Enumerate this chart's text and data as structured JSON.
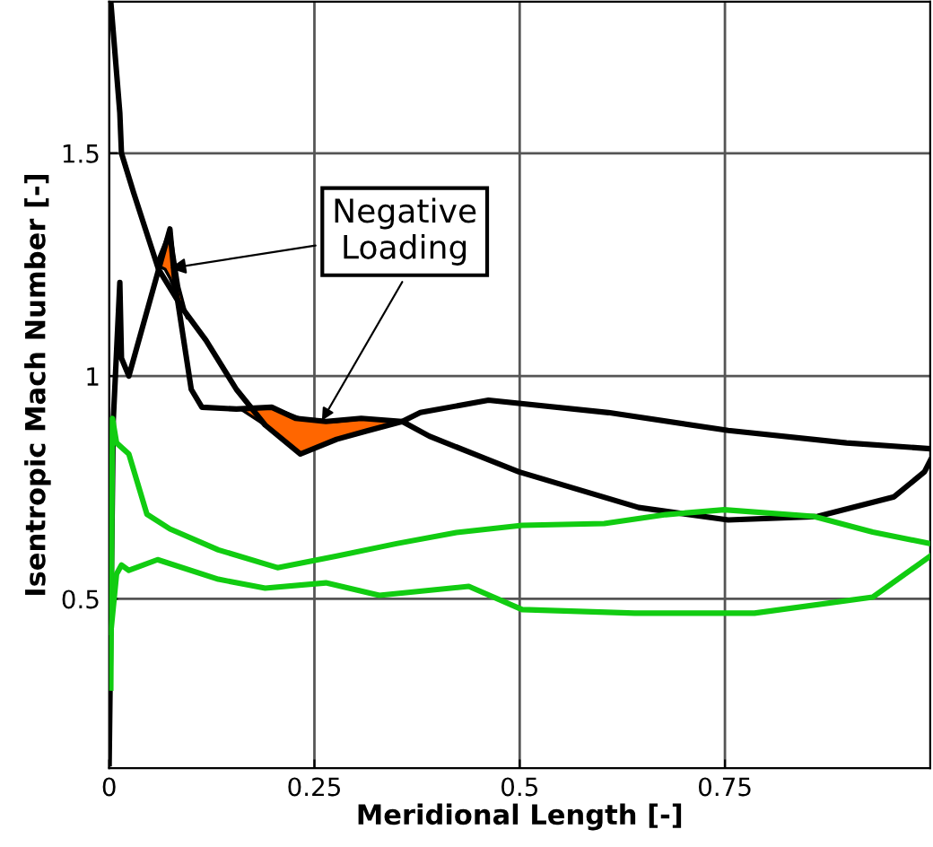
{
  "chart_data": {
    "type": "line",
    "xlabel": "Meridional Length [-]",
    "ylabel": "Isentropic Mach Number [-]",
    "xlim": [
      0,
      1
    ],
    "ylim": [
      0.12,
      1.84
    ],
    "xticks": [
      0,
      0.25,
      0.5,
      0.75
    ],
    "yticks": [
      0.5,
      1,
      1.5
    ],
    "grid": true,
    "legend": false,
    "marker": "none",
    "line_style": "solid",
    "series": [
      {
        "color": "#000000",
        "x": [
          0.002,
          0.013,
          0.015,
          0.03,
          0.06,
          0.09,
          0.118,
          0.155,
          0.19,
          0.233,
          0.277,
          0.314,
          0.357,
          0.39,
          0.499,
          0.645,
          0.754,
          0.863,
          0.956,
          0.993,
          1.0
        ],
        "values": [
          1.84,
          1.59,
          1.5,
          1.41,
          1.24,
          1.15,
          1.08,
          0.97,
          0.89,
          0.825,
          0.858,
          0.877,
          0.898,
          0.865,
          0.785,
          0.705,
          0.677,
          0.685,
          0.729,
          0.785,
          0.81
        ]
      },
      {
        "color": "#000000",
        "x": [
          0.0,
          0.005,
          0.013,
          0.015,
          0.024,
          0.074,
          0.08,
          0.1,
          0.113,
          0.155,
          0.198,
          0.227,
          0.264,
          0.307,
          0.357,
          0.379,
          0.462,
          0.608,
          0.754,
          0.898,
          1.0
        ],
        "values": [
          0.13,
          0.9,
          1.21,
          1.04,
          1.0,
          1.33,
          1.21,
          0.97,
          0.93,
          0.926,
          0.93,
          0.905,
          0.898,
          0.905,
          0.898,
          0.918,
          0.946,
          0.918,
          0.878,
          0.85,
          0.837
        ]
      },
      {
        "color": "#11cc11",
        "x": [
          0.002,
          0.004,
          0.009,
          0.024,
          0.046,
          0.074,
          0.133,
          0.205,
          0.277,
          0.35,
          0.423,
          0.503,
          0.603,
          0.678,
          0.749,
          0.858,
          0.93,
          1.0
        ],
        "values": [
          0.3,
          0.905,
          0.85,
          0.825,
          0.69,
          0.657,
          0.61,
          0.57,
          0.596,
          0.624,
          0.649,
          0.665,
          0.669,
          0.689,
          0.7,
          0.685,
          0.65,
          0.624
        ]
      },
      {
        "color": "#11cc11",
        "x": [
          0.002,
          0.009,
          0.015,
          0.024,
          0.059,
          0.133,
          0.19,
          0.264,
          0.329,
          0.438,
          0.503,
          0.64,
          0.786,
          0.93,
          1.0
        ],
        "values": [
          0.424,
          0.556,
          0.576,
          0.564,
          0.588,
          0.544,
          0.524,
          0.536,
          0.508,
          0.528,
          0.476,
          0.468,
          0.468,
          0.504,
          0.596
        ]
      },
      {
        "type": "area",
        "color": "#ff6600",
        "x": [
          0.057,
          0.068,
          0.074,
          0.085,
          0.095,
          0.085,
          0.074,
          0.068
        ],
        "values": [
          1.25,
          1.3,
          1.33,
          1.2,
          1.13,
          1.17,
          1.22,
          1.24
        ]
      },
      {
        "type": "area",
        "color": "#ff6600",
        "x": [
          0.16,
          0.198,
          0.233,
          0.277,
          0.314,
          0.357,
          0.314,
          0.277,
          0.233,
          0.198
        ],
        "values": [
          0.926,
          0.93,
          0.905,
          0.898,
          0.905,
          0.898,
          0.877,
          0.858,
          0.825,
          0.88
        ]
      }
    ],
    "annotations": [
      {
        "text": "Negative\nLoading",
        "x": 0.068,
        "y": 1.24
      }
    ]
  }
}
